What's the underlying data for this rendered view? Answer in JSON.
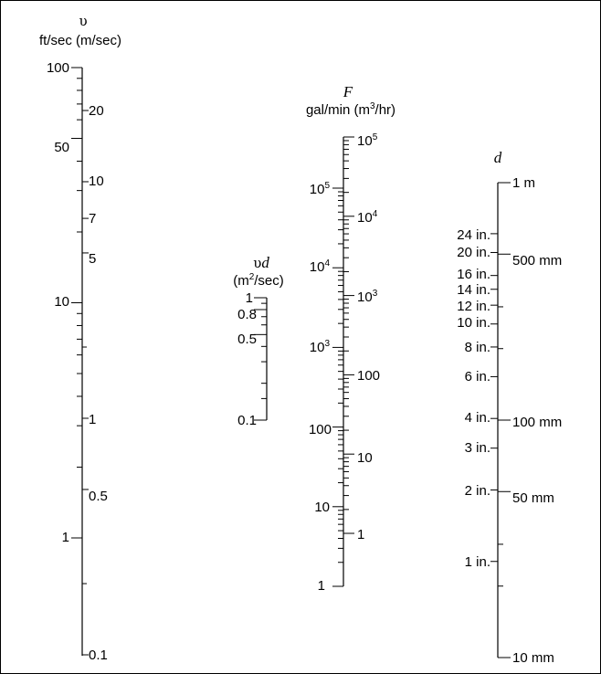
{
  "scales": {
    "velocity": {
      "symbol": "υ",
      "units": "ft/sec (m/sec)",
      "left_labels": [
        "100",
        "50",
        "10",
        "1"
      ],
      "right_labels": [
        "20",
        "10",
        "7",
        "5",
        "1",
        "0.5",
        "0.1"
      ]
    },
    "vd": {
      "symbol_a": "υ",
      "symbol_b": "d",
      "units": "(m",
      "units_exp": "2",
      "units_tail": "/sec)",
      "labels": [
        "1",
        "0.8",
        "0.5",
        "0.1"
      ]
    },
    "flow": {
      "symbol": "F",
      "units": "gal/min (m",
      "units_exp": "3",
      "units_tail": "/hr)",
      "left_labels": [
        {
          "base": "10",
          "exp": "5"
        },
        {
          "base": "10",
          "exp": "4"
        },
        {
          "base": "10",
          "exp": "3"
        },
        {
          "base": "100",
          "exp": ""
        },
        {
          "base": "10",
          "exp": ""
        },
        {
          "base": "1",
          "exp": ""
        }
      ],
      "right_labels": [
        {
          "base": "10",
          "exp": "5"
        },
        {
          "base": "10",
          "exp": "4"
        },
        {
          "base": "10",
          "exp": "3"
        },
        {
          "base": "100",
          "exp": ""
        },
        {
          "base": "10",
          "exp": ""
        },
        {
          "base": "1",
          "exp": ""
        }
      ]
    },
    "diameter": {
      "symbol": "d",
      "left_labels": [
        "24 in.",
        "20 in.",
        "16 in.",
        "14 in.",
        "12 in.",
        "10 in.",
        "8 in.",
        "6 in.",
        "4 in.",
        "3 in.",
        "2 in.",
        "1 in."
      ],
      "right_labels": [
        "1 m",
        "500 mm",
        "100 mm",
        "50 mm",
        "10 mm"
      ]
    }
  }
}
